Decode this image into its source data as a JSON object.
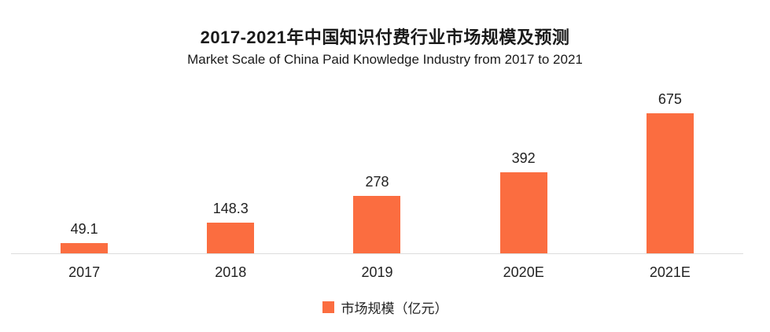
{
  "chart_data": {
    "type": "bar",
    "title": "2017-2021年中国知识付费行业市场规模及预测",
    "subtitle": "Market Scale of China Paid Knowledge Industry from 2017 to 2021",
    "categories": [
      "2017",
      "2018",
      "2019",
      "2020E",
      "2021E"
    ],
    "values": [
      49.1,
      148.3,
      278,
      392,
      675
    ],
    "value_labels": [
      "49.1",
      "148.3",
      "278",
      "392",
      "675"
    ],
    "series_name": "市场规模（亿元）",
    "legend": [
      "市场规模（亿元）"
    ],
    "legend_position": "bottom",
    "xlabel": "",
    "ylabel": "",
    "ylim": [
      0,
      750
    ],
    "grid": false,
    "y_axis_visible": false,
    "colors": {
      "bar": "#fb6d40",
      "text": "#222222",
      "title": "#1a1a1a",
      "axis_line": "#dddddd",
      "background": "#ffffff"
    }
  }
}
